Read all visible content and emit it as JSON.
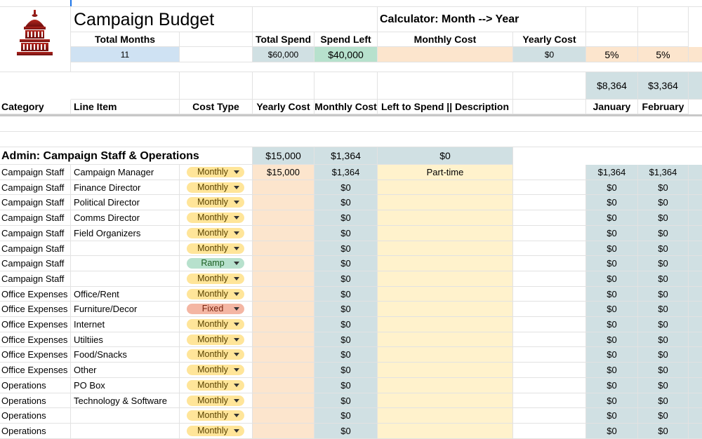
{
  "sheet": {
    "title": "Campaign Budget",
    "calculator_title": "Calculator: Month --> Year"
  },
  "summary": {
    "total_months_label": "Total Months",
    "total_months_value": "11",
    "total_spend_label": "Total Spend",
    "total_spend_value": "$60,000",
    "spend_left_label": "Spend Left",
    "spend_left_value": "$40,000",
    "monthly_cost_label": "Monthly Cost",
    "yearly_cost_label": "Yearly Cost",
    "yearly_cost_value": "$0",
    "rate_1": "5%",
    "rate_2": "5%"
  },
  "month_totals": {
    "january": "$8,364",
    "february": "$3,364"
  },
  "headers": {
    "category": "Category",
    "line_item": "Line Item",
    "cost_type": "Cost Type",
    "yearly_cost": "Yearly Cost",
    "monthly_cost": "Monthly Cost",
    "left_to_spend": "Left to Spend || Description",
    "january": "January",
    "february": "February"
  },
  "section": {
    "title": "Admin: Campaign Staff & Operations",
    "yearly_total": "$15,000",
    "monthly_total": "$1,364",
    "left_total": "$0"
  },
  "rows": [
    {
      "category": "Campaign Staff",
      "line_item": "Campaign Manager",
      "cost_type": "Monthly",
      "yearly": "$15,000",
      "monthly": "$1,364",
      "desc": "Part-time",
      "jan": "$1,364",
      "feb": "$1,364"
    },
    {
      "category": "Campaign Staff",
      "line_item": "Finance Director",
      "cost_type": "Monthly",
      "yearly": "",
      "monthly": "$0",
      "desc": "",
      "jan": "$0",
      "feb": "$0"
    },
    {
      "category": "Campaign Staff",
      "line_item": "Political Director",
      "cost_type": "Monthly",
      "yearly": "",
      "monthly": "$0",
      "desc": "",
      "jan": "$0",
      "feb": "$0"
    },
    {
      "category": "Campaign Staff",
      "line_item": "Comms Director",
      "cost_type": "Monthly",
      "yearly": "",
      "monthly": "$0",
      "desc": "",
      "jan": "$0",
      "feb": "$0"
    },
    {
      "category": "Campaign Staff",
      "line_item": "Field Organizers",
      "cost_type": "Monthly",
      "yearly": "",
      "monthly": "$0",
      "desc": "",
      "jan": "$0",
      "feb": "$0"
    },
    {
      "category": "Campaign Staff",
      "line_item": "",
      "cost_type": "Monthly",
      "yearly": "",
      "monthly": "$0",
      "desc": "",
      "jan": "$0",
      "feb": "$0"
    },
    {
      "category": "Campaign Staff",
      "line_item": "",
      "cost_type": "Ramp",
      "yearly": "",
      "monthly": "$0",
      "desc": "",
      "jan": "$0",
      "feb": "$0"
    },
    {
      "category": "Campaign Staff",
      "line_item": "",
      "cost_type": "Monthly",
      "yearly": "",
      "monthly": "$0",
      "desc": "",
      "jan": "$0",
      "feb": "$0"
    },
    {
      "category": "Office Expenses",
      "line_item": "Office/Rent",
      "cost_type": "Monthly",
      "yearly": "",
      "monthly": "$0",
      "desc": "",
      "jan": "$0",
      "feb": "$0"
    },
    {
      "category": "Office Expenses",
      "line_item": "Furniture/Decor",
      "cost_type": "Fixed",
      "yearly": "",
      "monthly": "$0",
      "desc": "",
      "jan": "$0",
      "feb": "$0"
    },
    {
      "category": "Office Expenses",
      "line_item": "Internet",
      "cost_type": "Monthly",
      "yearly": "",
      "monthly": "$0",
      "desc": "",
      "jan": "$0",
      "feb": "$0"
    },
    {
      "category": "Office Expenses",
      "line_item": "Utiltiies",
      "cost_type": "Monthly",
      "yearly": "",
      "monthly": "$0",
      "desc": "",
      "jan": "$0",
      "feb": "$0"
    },
    {
      "category": "Office Expenses",
      "line_item": "Food/Snacks",
      "cost_type": "Monthly",
      "yearly": "",
      "monthly": "$0",
      "desc": "",
      "jan": "$0",
      "feb": "$0"
    },
    {
      "category": "Office Expenses",
      "line_item": "Other",
      "cost_type": "Monthly",
      "yearly": "",
      "monthly": "$0",
      "desc": "",
      "jan": "$0",
      "feb": "$0"
    },
    {
      "category": "Operations",
      "line_item": "PO Box",
      "cost_type": "Monthly",
      "yearly": "",
      "monthly": "$0",
      "desc": "",
      "jan": "$0",
      "feb": "$0"
    },
    {
      "category": "Operations",
      "line_item": "Technology & Software",
      "cost_type": "Monthly",
      "yearly": "",
      "monthly": "$0",
      "desc": "",
      "jan": "$0",
      "feb": "$0"
    },
    {
      "category": "Operations",
      "line_item": "",
      "cost_type": "Monthly",
      "yearly": "",
      "monthly": "$0",
      "desc": "",
      "jan": "$0",
      "feb": "$0"
    },
    {
      "category": "Operations",
      "line_item": "",
      "cost_type": "Monthly",
      "yearly": "",
      "monthly": "$0",
      "desc": "",
      "jan": "$0",
      "feb": "$0"
    }
  ]
}
